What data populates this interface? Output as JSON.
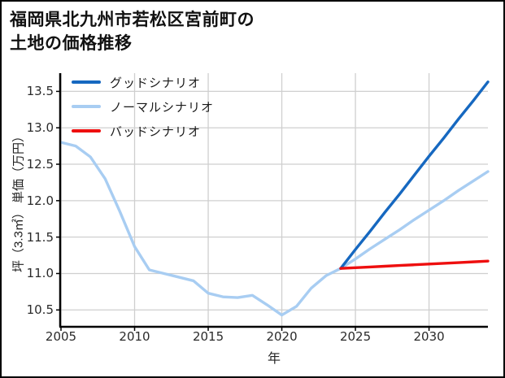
{
  "window": {
    "background": "#ffffff",
    "border_color": "#000000"
  },
  "title": {
    "line1": "福岡県北九州市若松区宮前町の",
    "line2": "土地の価格推移"
  },
  "chart_data": {
    "type": "line",
    "title": "福岡県北九州市若松区宮前町の土地の価格推移",
    "xlabel": "年",
    "ylabel": "坪（3.3㎡） 単価（万円）",
    "x_range": [
      2005,
      2034
    ],
    "y_range": [
      10.28,
      13.75
    ],
    "grid": true,
    "grid_color": "#cfcfcf",
    "axis_color": "#000000",
    "legend_position": "upper-left",
    "x_ticks": [
      {
        "label": "2005",
        "value": 2005
      },
      {
        "label": "2010",
        "value": 2010
      },
      {
        "label": "2015",
        "value": 2015
      },
      {
        "label": "2020",
        "value": 2020
      },
      {
        "label": "2025",
        "value": 2025
      },
      {
        "label": "2030",
        "value": 2030
      }
    ],
    "y_ticks": [
      {
        "label": "10.5",
        "value": 10.5
      },
      {
        "label": "11.0",
        "value": 11.0
      },
      {
        "label": "11.5",
        "value": 11.5
      },
      {
        "label": "12.0",
        "value": 12.0
      },
      {
        "label": "12.5",
        "value": 12.5
      },
      {
        "label": "13.0",
        "value": 13.0
      },
      {
        "label": "13.5",
        "value": 13.5
      }
    ],
    "series": [
      {
        "id": "good-scenario",
        "name": "グッドシナリオ",
        "color": "#1668c0",
        "x": [
          2024,
          2025,
          2026,
          2027,
          2028,
          2029,
          2030,
          2031,
          2032,
          2033,
          2034
        ],
        "values": [
          11.07,
          11.33,
          11.58,
          11.84,
          12.09,
          12.35,
          12.61,
          12.86,
          13.12,
          13.37,
          13.63
        ]
      },
      {
        "id": "normal-scenario",
        "name": "ノーマルシナリオ",
        "color": "#a8cdf2",
        "x": [
          2005,
          2006,
          2007,
          2008,
          2009,
          2010,
          2011,
          2012,
          2013,
          2014,
          2015,
          2016,
          2017,
          2018,
          2019,
          2020,
          2021,
          2022,
          2023,
          2024,
          2025,
          2026,
          2027,
          2028,
          2029,
          2030,
          2031,
          2032,
          2033,
          2034
        ],
        "values": [
          12.8,
          12.75,
          12.6,
          12.3,
          11.85,
          11.37,
          11.05,
          11.0,
          10.95,
          10.9,
          10.73,
          10.68,
          10.67,
          10.7,
          10.57,
          10.43,
          10.55,
          10.8,
          10.97,
          11.07,
          11.2,
          11.34,
          11.47,
          11.6,
          11.74,
          11.87,
          12.0,
          12.14,
          12.27,
          12.4
        ]
      },
      {
        "id": "bad-scenario",
        "name": "バッドシナリオ",
        "color": "#ee0f0f",
        "x": [
          2024,
          2025,
          2026,
          2027,
          2028,
          2029,
          2030,
          2031,
          2032,
          2033,
          2034
        ],
        "values": [
          11.07,
          11.08,
          11.09,
          11.1,
          11.11,
          11.12,
          11.13,
          11.14,
          11.15,
          11.16,
          11.17
        ]
      }
    ]
  }
}
